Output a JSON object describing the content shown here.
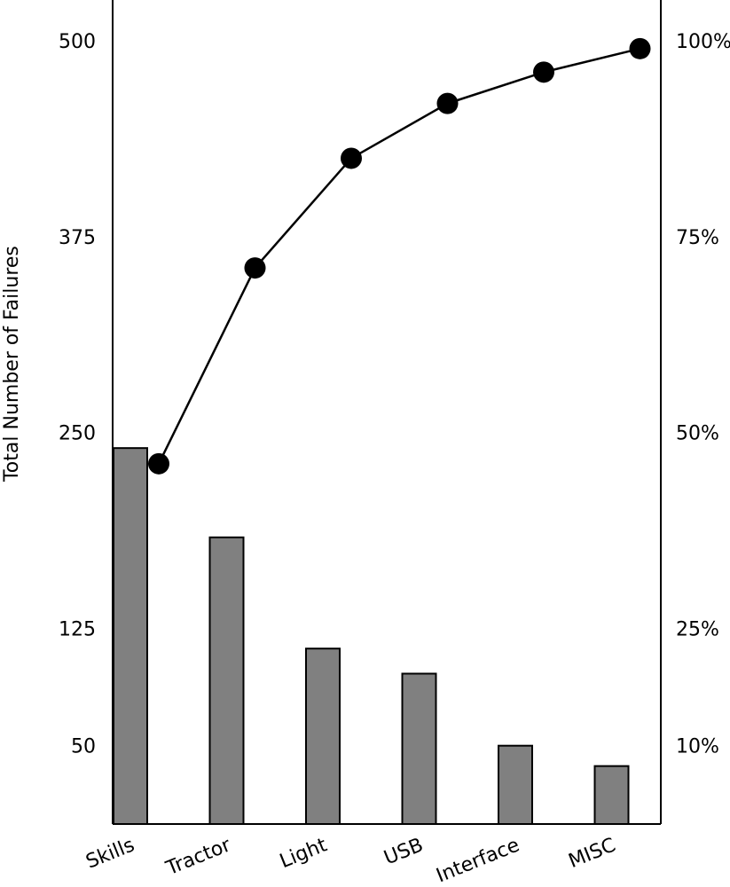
{
  "chart_data": {
    "type": "bar",
    "title": "",
    "categories": [
      "Skills",
      "Tractor",
      "Light",
      "USB",
      "Interface",
      "MISC"
    ],
    "series": [
      {
        "values": [
          240,
          183,
          112,
          96,
          50,
          37
        ]
      },
      {
        "values": [
          46,
          71,
          85,
          92,
          96,
          99
        ]
      }
    ],
    "ylabel": "Total Number of Failures",
    "y_ticks": [
      "500",
      "375",
      "250",
      "125",
      "50"
    ],
    "y_tick_values": [
      500,
      375,
      250,
      125,
      50
    ],
    "y2_ticks": [
      "100%",
      "75%",
      "50%",
      "25%",
      "10%"
    ],
    "y2_tick_values": [
      100,
      75,
      50,
      25,
      10
    ],
    "ylim": [
      0,
      500
    ],
    "y2lim": [
      0,
      100
    ],
    "grid": false,
    "colors": {
      "bar": "#808080",
      "line": "#000000",
      "axis": "#000000"
    }
  }
}
